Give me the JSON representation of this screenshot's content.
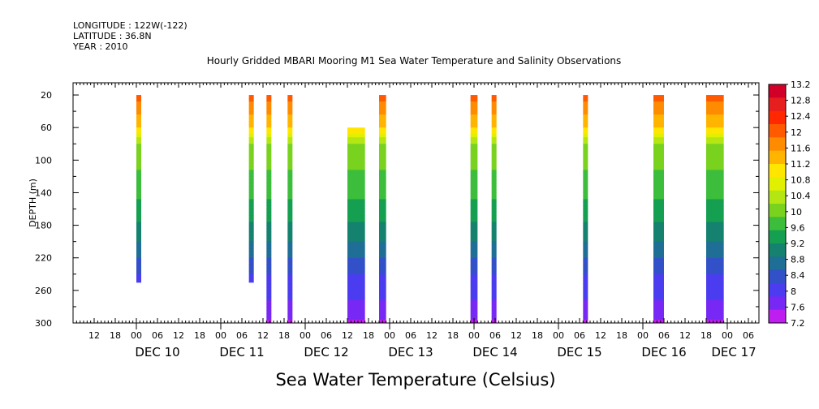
{
  "header": {
    "longitude": "LONGITUDE : 122W(-122)",
    "latitude": "LATITUDE : 36.8N",
    "year": "YEAR : 2010"
  },
  "chart_data": {
    "type": "heatmap",
    "title": "Hourly Gridded MBARI Mooring M1 Sea Water Temperature and Salinity Observations",
    "xlabel": "",
    "ylabel": "DEPTH (m)",
    "colorbar_label": "Sea Water Temperature (Celsius)",
    "x_axis": {
      "start": "2010-12-09T06:00",
      "end": "2010-12-17T09:00",
      "hour_tick_labels": [
        "12",
        "18",
        "00",
        "06",
        "12",
        "18",
        "00",
        "06",
        "12",
        "18",
        "00",
        "06",
        "12",
        "18",
        "00",
        "06",
        "12",
        "18",
        "00",
        "06",
        "12",
        "18",
        "00",
        "06",
        "12",
        "18",
        "00",
        "06",
        "12",
        "18",
        "00",
        "06"
      ],
      "day_labels": [
        "DEC 10",
        "DEC 11",
        "DEC 12",
        "DEC 13",
        "DEC 14",
        "DEC 15",
        "DEC 16",
        "DEC 17"
      ]
    },
    "y_axis": {
      "range": [
        300,
        5
      ],
      "inverted": true,
      "ticks": [
        20,
        60,
        100,
        140,
        180,
        220,
        260,
        300
      ]
    },
    "colorbar": {
      "min": 7.2,
      "max": 13.2,
      "tick_labels": [
        "13.2",
        "12.8",
        "12.4",
        "12",
        "11.6",
        "11.2",
        "10.8",
        "10.4",
        "10",
        "9.6",
        "9.2",
        "8.8",
        "8.4",
        "8",
        "7.6",
        "7.2"
      ],
      "colors": [
        "#d20028",
        "#e61e1e",
        "#ff2800",
        "#ff5a00",
        "#ff8c00",
        "#ffb400",
        "#ffe600",
        "#e1f000",
        "#b4e614",
        "#78d21e",
        "#3cbe3c",
        "#14a050",
        "#14826e",
        "#1e6e96",
        "#3250c8",
        "#4b3cf0",
        "#7828f5",
        "#be1ef0"
      ]
    },
    "data_columns_note": "",
    "series": [
      {
        "start": "2010-12-10T00:00",
        "end": "2010-12-10T01:00",
        "depth_min": 20,
        "depth_max": 250
      },
      {
        "start": "2010-12-11T08:00",
        "end": "2010-12-11T09:00",
        "depth_min": 20,
        "depth_max": 250
      },
      {
        "start": "2010-12-11T13:00",
        "end": "2010-12-11T14:00",
        "depth_min": 20,
        "depth_max": 300
      },
      {
        "start": "2010-12-11T19:00",
        "end": "2010-12-11T20:00",
        "depth_min": 20,
        "depth_max": 300
      },
      {
        "start": "2010-12-12T12:00",
        "end": "2010-12-12T17:00",
        "depth_min": 60,
        "depth_max": 300
      },
      {
        "start": "2010-12-12T21:00",
        "end": "2010-12-12T23:00",
        "depth_min": 20,
        "depth_max": 300
      },
      {
        "start": "2010-12-13T23:00",
        "end": "2010-12-14T01:00",
        "depth_min": 20,
        "depth_max": 300
      },
      {
        "start": "2010-12-14T05:00",
        "end": "2010-12-14T06:00",
        "depth_min": 20,
        "depth_max": 300
      },
      {
        "start": "2010-12-15T07:00",
        "end": "2010-12-15T08:00",
        "depth_min": 20,
        "depth_max": 300
      },
      {
        "start": "2010-12-16T03:00",
        "end": "2010-12-16T06:00",
        "depth_min": 20,
        "depth_max": 300
      },
      {
        "start": "2010-12-16T18:00",
        "end": "2010-12-16T23:00",
        "depth_min": 20,
        "depth_max": 300
      }
    ],
    "profile": [
      {
        "depth": 20,
        "temp": 12.0
      },
      {
        "depth": 60,
        "temp": 11.2
      },
      {
        "depth": 80,
        "temp": 10.2
      },
      {
        "depth": 120,
        "temp": 9.8
      },
      {
        "depth": 160,
        "temp": 9.4
      },
      {
        "depth": 200,
        "temp": 8.9
      },
      {
        "depth": 240,
        "temp": 8.2
      },
      {
        "depth": 280,
        "temp": 7.8
      },
      {
        "depth": 300,
        "temp": 7.5
      }
    ]
  }
}
